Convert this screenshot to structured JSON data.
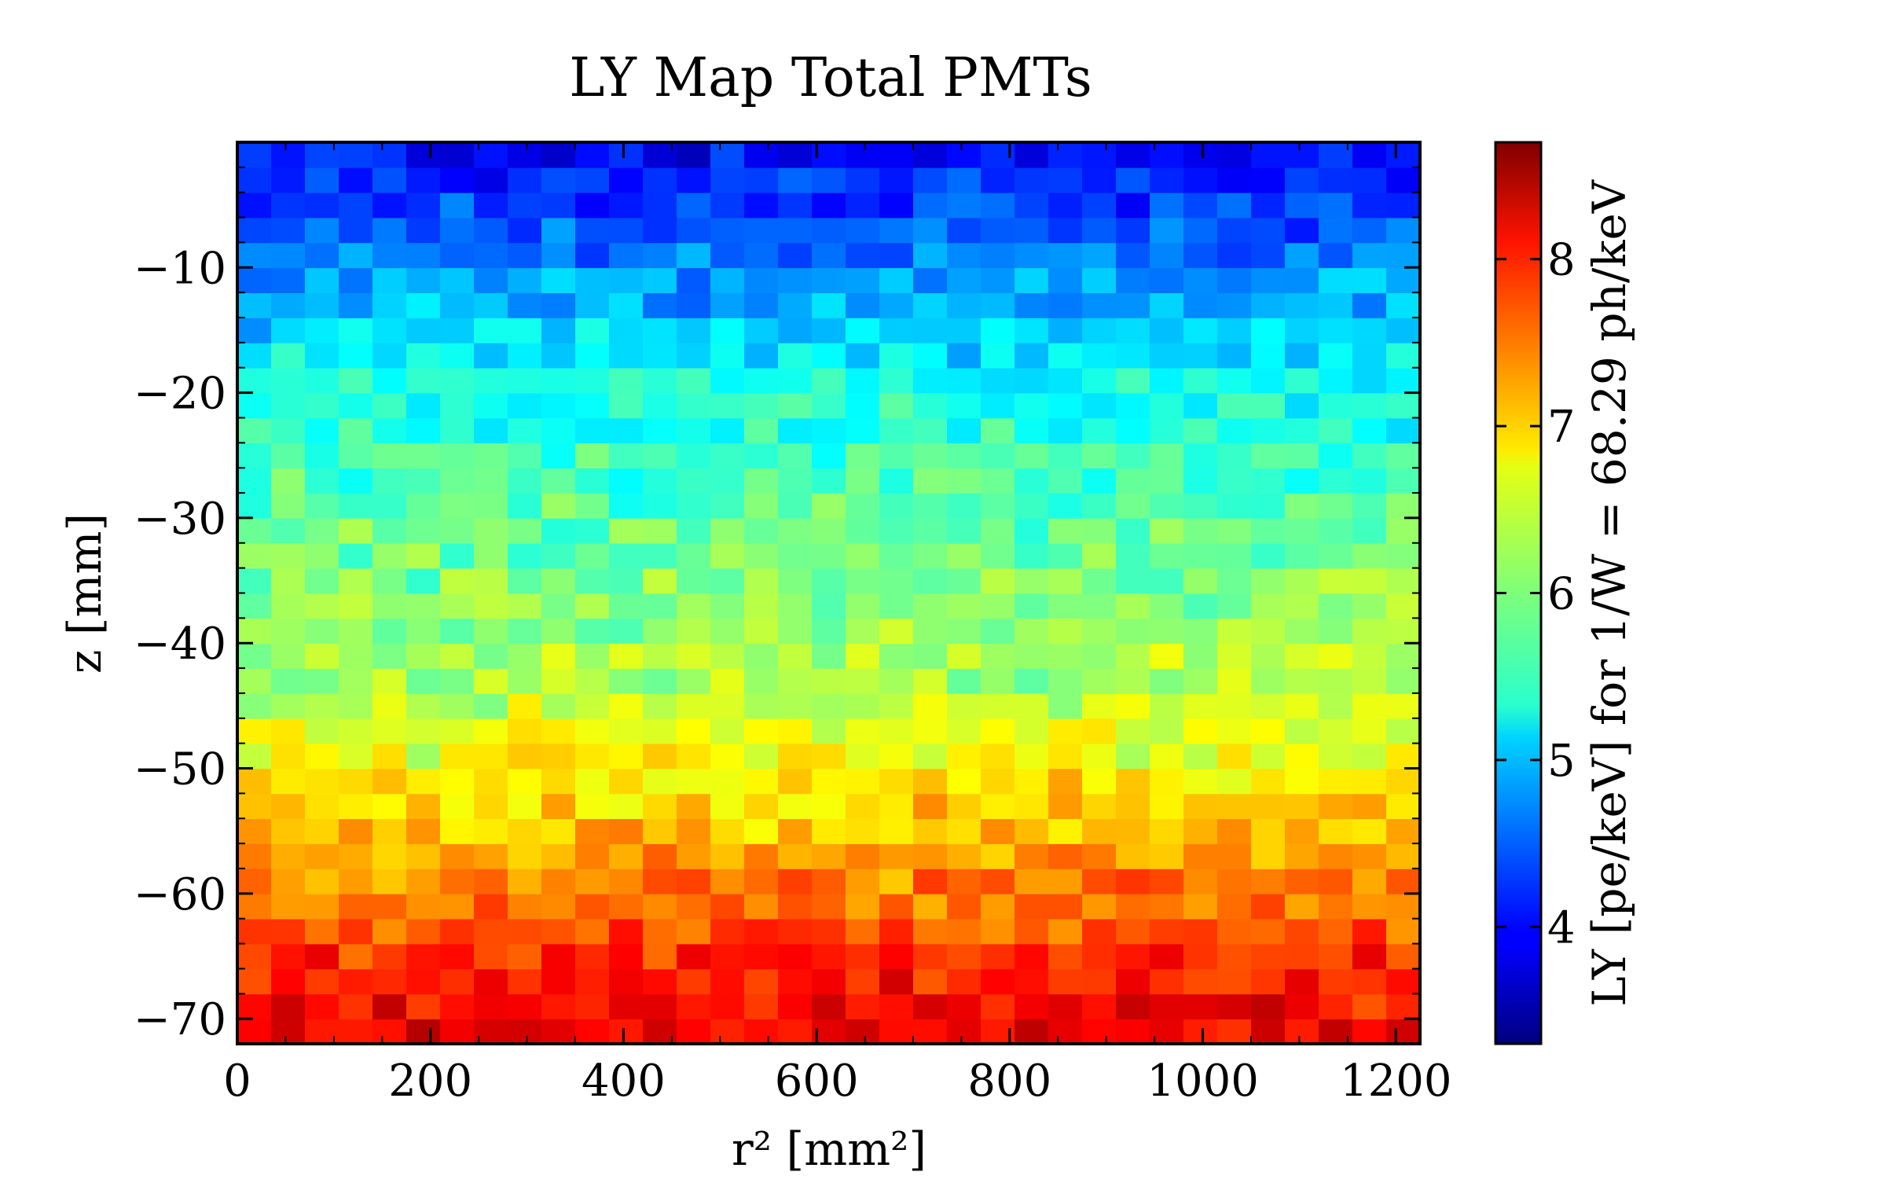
{
  "chart_data": {
    "type": "heatmap",
    "title": "LY Map Total PMTs",
    "xlabel": "r² [mm²]",
    "ylabel": "z [mm]",
    "colorbar_label": "LY [pe/keV] for 1/W = 68.29 ph/keV",
    "colormap": "jet",
    "xlim": [
      0,
      1225
    ],
    "ylim": [
      -72,
      0
    ],
    "x_ticks": [
      0,
      200,
      400,
      600,
      800,
      1000,
      1200
    ],
    "x_tick_labels": [
      "0",
      "200",
      "400",
      "600",
      "800",
      "1000",
      "1200"
    ],
    "y_ticks": [
      -10,
      -20,
      -30,
      -40,
      -50,
      -60,
      -70
    ],
    "y_tick_labels": [
      "−10",
      "−20",
      "−30",
      "−40",
      "−50",
      "−60",
      "−70"
    ],
    "colorbar_range": [
      3.3,
      8.7
    ],
    "colorbar_ticks": [
      4,
      5,
      6,
      7,
      8
    ],
    "colorbar_tick_labels": [
      "4",
      "5",
      "6",
      "7",
      "8"
    ],
    "nx": 35,
    "ny": 36,
    "z_bottom": -72,
    "z_top": 0,
    "x_min": 0,
    "x_max": 1225,
    "row_means": [
      8.1,
      8.0,
      7.9,
      7.8,
      7.6,
      7.4,
      7.35,
      7.2,
      7.0,
      6.95,
      6.8,
      6.6,
      6.6,
      6.4,
      6.2,
      6.3,
      6.1,
      6.1,
      6.0,
      5.9,
      5.9,
      5.8,
      5.7,
      5.7,
      5.5,
      5.5,
      5.4,
      5.2,
      5.1,
      4.9,
      4.8,
      4.6,
      4.5,
      4.3,
      4.2,
      4.0
    ],
    "noise_amplitude": 0.32,
    "seed": 7
  }
}
